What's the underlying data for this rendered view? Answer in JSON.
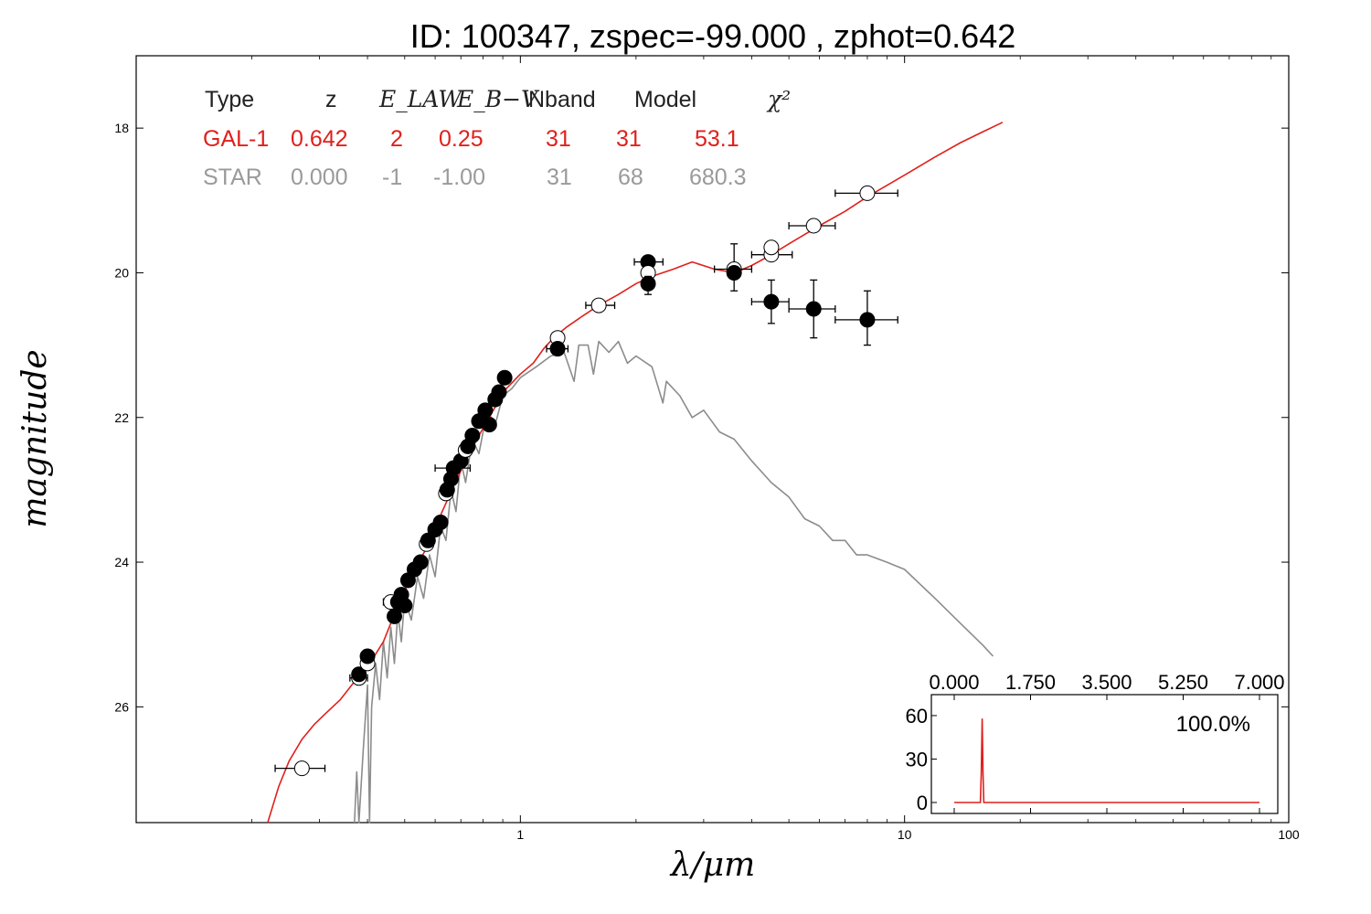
{
  "title": "ID:  100347, zspec=-99.000 , zphot=0.642",
  "xlabel": "λ/μm",
  "ylabel": "magnitude",
  "colors": {
    "galaxy": "#e0201c",
    "star": "#8c8c8c",
    "points": "#000000"
  },
  "table": {
    "headers": [
      "Type",
      "z",
      "E_LAW",
      "E_B−V",
      "Nband",
      "Model",
      "χ²"
    ],
    "rows": [
      {
        "cells": [
          "GAL-1",
          "0.642",
          "2",
          "0.25",
          "31",
          "31",
          "53.1"
        ],
        "color": "#e0201c"
      },
      {
        "cells": [
          "STAR",
          "0.000",
          "-1",
          "-1.00",
          "31",
          "68",
          "680.3"
        ],
        "color": "#9a9a9a"
      }
    ]
  },
  "chart_data": {
    "type": "scatter",
    "x_scale": "log",
    "xlim": [
      0.1,
      100
    ],
    "ylim": [
      27.6,
      17.0
    ],
    "xticks": [
      {
        "v": 1,
        "label": "1"
      },
      {
        "v": 10,
        "label": "10"
      },
      {
        "v": 100,
        "label": "100"
      }
    ],
    "yticks": [
      {
        "v": 18,
        "label": "18"
      },
      {
        "v": 20,
        "label": "20"
      },
      {
        "v": 22,
        "label": "22"
      },
      {
        "v": 24,
        "label": "24"
      },
      {
        "v": 26,
        "label": "26"
      }
    ],
    "galaxy_model": [
      [
        0.22,
        27.6
      ],
      [
        0.235,
        27.1
      ],
      [
        0.25,
        26.75
      ],
      [
        0.27,
        26.45
      ],
      [
        0.29,
        26.25
      ],
      [
        0.31,
        26.1
      ],
      [
        0.34,
        25.9
      ],
      [
        0.37,
        25.65
      ],
      [
        0.4,
        25.45
      ],
      [
        0.44,
        25.1
      ],
      [
        0.48,
        24.6
      ],
      [
        0.52,
        24.2
      ],
      [
        0.57,
        23.8
      ],
      [
        0.62,
        23.35
      ],
      [
        0.67,
        22.95
      ],
      [
        0.72,
        22.6
      ],
      [
        0.78,
        22.25
      ],
      [
        0.85,
        21.9
      ],
      [
        0.92,
        21.6
      ],
      [
        1.0,
        21.4
      ],
      [
        1.08,
        21.25
      ],
      [
        1.15,
        21.05
      ],
      [
        1.22,
        20.9
      ],
      [
        1.32,
        20.75
      ],
      [
        1.45,
        20.6
      ],
      [
        1.6,
        20.45
      ],
      [
        1.8,
        20.3
      ],
      [
        2.0,
        20.15
      ],
      [
        2.2,
        20.05
      ],
      [
        2.5,
        19.95
      ],
      [
        2.8,
        19.85
      ],
      [
        3.2,
        19.95
      ],
      [
        3.6,
        20.0
      ],
      [
        4.0,
        19.9
      ],
      [
        4.5,
        19.75
      ],
      [
        5.0,
        19.6
      ],
      [
        6.0,
        19.35
      ],
      [
        7.0,
        19.15
      ],
      [
        8.0,
        18.95
      ],
      [
        10.0,
        18.65
      ],
      [
        12.0,
        18.4
      ],
      [
        14.0,
        18.2
      ],
      [
        16.0,
        18.05
      ],
      [
        18.0,
        17.92
      ]
    ],
    "star_model": [
      [
        0.37,
        27.6
      ],
      [
        0.375,
        26.9
      ],
      [
        0.38,
        27.6
      ],
      [
        0.39,
        26.6
      ],
      [
        0.4,
        25.7
      ],
      [
        0.405,
        27.6
      ],
      [
        0.41,
        26.0
      ],
      [
        0.42,
        25.4
      ],
      [
        0.43,
        25.9
      ],
      [
        0.44,
        25.1
      ],
      [
        0.45,
        25.6
      ],
      [
        0.46,
        24.9
      ],
      [
        0.47,
        25.4
      ],
      [
        0.48,
        24.7
      ],
      [
        0.49,
        25.1
      ],
      [
        0.5,
        24.5
      ],
      [
        0.52,
        24.8
      ],
      [
        0.54,
        24.2
      ],
      [
        0.56,
        24.5
      ],
      [
        0.58,
        23.9
      ],
      [
        0.6,
        24.2
      ],
      [
        0.62,
        23.5
      ],
      [
        0.64,
        23.7
      ],
      [
        0.66,
        23.0
      ],
      [
        0.68,
        23.3
      ],
      [
        0.7,
        22.6
      ],
      [
        0.72,
        22.9
      ],
      [
        0.75,
        22.3
      ],
      [
        0.78,
        22.5
      ],
      [
        0.82,
        21.9
      ],
      [
        0.86,
        22.1
      ],
      [
        0.9,
        21.7
      ],
      [
        0.95,
        21.6
      ],
      [
        1.0,
        21.45
      ],
      [
        1.1,
        21.3
      ],
      [
        1.2,
        21.15
      ],
      [
        1.3,
        21.1
      ],
      [
        1.38,
        21.5
      ],
      [
        1.42,
        21.0
      ],
      [
        1.5,
        21.0
      ],
      [
        1.55,
        21.4
      ],
      [
        1.6,
        20.95
      ],
      [
        1.7,
        21.1
      ],
      [
        1.8,
        20.95
      ],
      [
        1.9,
        21.25
      ],
      [
        2.0,
        21.15
      ],
      [
        2.2,
        21.3
      ],
      [
        2.35,
        21.8
      ],
      [
        2.4,
        21.5
      ],
      [
        2.6,
        21.7
      ],
      [
        2.8,
        22.0
      ],
      [
        3.0,
        21.9
      ],
      [
        3.3,
        22.2
      ],
      [
        3.6,
        22.3
      ],
      [
        4.0,
        22.6
      ],
      [
        4.5,
        22.9
      ],
      [
        5.0,
        23.1
      ],
      [
        5.5,
        23.4
      ],
      [
        6.0,
        23.5
      ],
      [
        6.5,
        23.7
      ],
      [
        7.0,
        23.7
      ],
      [
        7.5,
        23.9
      ],
      [
        8.0,
        23.9
      ],
      [
        9.0,
        24.0
      ],
      [
        10.0,
        24.1
      ],
      [
        12.0,
        24.5
      ],
      [
        14.0,
        24.85
      ],
      [
        16.0,
        25.15
      ],
      [
        17.0,
        25.3
      ]
    ],
    "observed": [
      {
        "x": 0.27,
        "y": 26.85,
        "xerr": [
          0.23,
          0.31
        ],
        "filled": false
      },
      {
        "x": 0.38,
        "y": 25.6,
        "xerr": [
          0.36,
          0.4
        ],
        "filled": false
      },
      {
        "x": 0.38,
        "y": 25.55,
        "filled": true
      },
      {
        "x": 0.4,
        "y": 25.4,
        "filled": false
      },
      {
        "x": 0.4,
        "y": 25.3,
        "filled": true
      },
      {
        "x": 0.46,
        "y": 24.55,
        "xerr": [
          0.44,
          0.5
        ],
        "filled": false
      },
      {
        "x": 0.47,
        "y": 24.75,
        "filled": true
      },
      {
        "x": 0.48,
        "y": 24.55,
        "filled": true
      },
      {
        "x": 0.49,
        "y": 24.45,
        "filled": true
      },
      {
        "x": 0.5,
        "y": 24.6,
        "filled": true
      },
      {
        "x": 0.51,
        "y": 24.25,
        "filled": true
      },
      {
        "x": 0.53,
        "y": 24.1,
        "filled": true
      },
      {
        "x": 0.55,
        "y": 24.0,
        "filled": true
      },
      {
        "x": 0.57,
        "y": 23.75,
        "filled": false
      },
      {
        "x": 0.575,
        "y": 23.7,
        "filled": true
      },
      {
        "x": 0.6,
        "y": 23.55,
        "filled": true
      },
      {
        "x": 0.62,
        "y": 23.45,
        "filled": true
      },
      {
        "x": 0.64,
        "y": 23.05,
        "filled": false
      },
      {
        "x": 0.645,
        "y": 23.0,
        "filled": true
      },
      {
        "x": 0.66,
        "y": 22.85,
        "filled": true
      },
      {
        "x": 0.67,
        "y": 22.7,
        "xerr": [
          0.6,
          0.74
        ],
        "filled": true
      },
      {
        "x": 0.7,
        "y": 22.6,
        "filled": true
      },
      {
        "x": 0.72,
        "y": 22.45,
        "filled": false
      },
      {
        "x": 0.73,
        "y": 22.4,
        "filled": true
      },
      {
        "x": 0.75,
        "y": 22.25,
        "filled": true
      },
      {
        "x": 0.78,
        "y": 22.05,
        "filled": true
      },
      {
        "x": 0.81,
        "y": 21.9,
        "filled": true
      },
      {
        "x": 0.83,
        "y": 22.1,
        "filled": true
      },
      {
        "x": 0.86,
        "y": 21.75,
        "filled": true
      },
      {
        "x": 0.88,
        "y": 21.65,
        "filled": true
      },
      {
        "x": 0.91,
        "y": 21.45,
        "filled": true
      },
      {
        "x": 1.25,
        "y": 20.9,
        "filled": false
      },
      {
        "x": 1.25,
        "y": 21.05,
        "xerr": [
          1.17,
          1.33
        ],
        "filled": true
      },
      {
        "x": 1.6,
        "y": 20.45,
        "xerr": [
          1.48,
          1.76
        ],
        "filled": false
      },
      {
        "x": 2.15,
        "y": 19.85,
        "xerr": [
          1.98,
          2.35
        ],
        "filled": true
      },
      {
        "x": 2.15,
        "y": 20.0,
        "filled": false
      },
      {
        "x": 2.15,
        "y": 20.15,
        "yerr": [
          20.05,
          20.3
        ],
        "filled": true
      },
      {
        "x": 3.6,
        "y": 19.95,
        "xerr": [
          3.2,
          4.0
        ],
        "yerr": [
          19.6,
          20.25
        ],
        "filled": false
      },
      {
        "x": 3.6,
        "y": 20.0,
        "filled": true
      },
      {
        "x": 4.5,
        "y": 19.75,
        "xerr": [
          4.0,
          5.1
        ],
        "filled": false
      },
      {
        "x": 4.5,
        "y": 19.65,
        "filled": false
      },
      {
        "x": 4.5,
        "y": 20.4,
        "xerr": [
          4.0,
          5.0
        ],
        "yerr": [
          20.1,
          20.7
        ],
        "filled": true
      },
      {
        "x": 5.8,
        "y": 19.35,
        "xerr": [
          5.0,
          6.6
        ],
        "filled": false
      },
      {
        "x": 5.8,
        "y": 20.5,
        "xerr": [
          5.0,
          6.6
        ],
        "yerr": [
          20.1,
          20.9
        ],
        "filled": true
      },
      {
        "x": 8.0,
        "y": 18.9,
        "xerr": [
          6.6,
          9.6
        ],
        "filled": false
      },
      {
        "x": 8.0,
        "y": 20.65,
        "xerr": [
          6.6,
          9.6
        ],
        "yerr": [
          20.25,
          21.0
        ],
        "filled": true
      }
    ],
    "inset": {
      "type": "line",
      "xlim": [
        0,
        7
      ],
      "ylim": [
        0,
        65
      ],
      "xticks": [
        {
          "v": 0,
          "label": "0.000"
        },
        {
          "v": 1.75,
          "label": "1.750"
        },
        {
          "v": 3.5,
          "label": "3.500"
        },
        {
          "v": 5.25,
          "label": "5.250"
        },
        {
          "v": 7,
          "label": "7.000"
        }
      ],
      "yticks": [
        {
          "v": 0,
          "label": "0"
        },
        {
          "v": 30,
          "label": "30"
        },
        {
          "v": 60,
          "label": "60"
        }
      ],
      "percent_label": "100.0%",
      "pdz": [
        [
          0.0,
          0.0
        ],
        [
          0.6,
          0.0
        ],
        [
          0.62,
          20
        ],
        [
          0.642,
          58
        ],
        [
          0.66,
          20
        ],
        [
          0.68,
          0.0
        ],
        [
          7.0,
          0.0
        ]
      ]
    }
  }
}
